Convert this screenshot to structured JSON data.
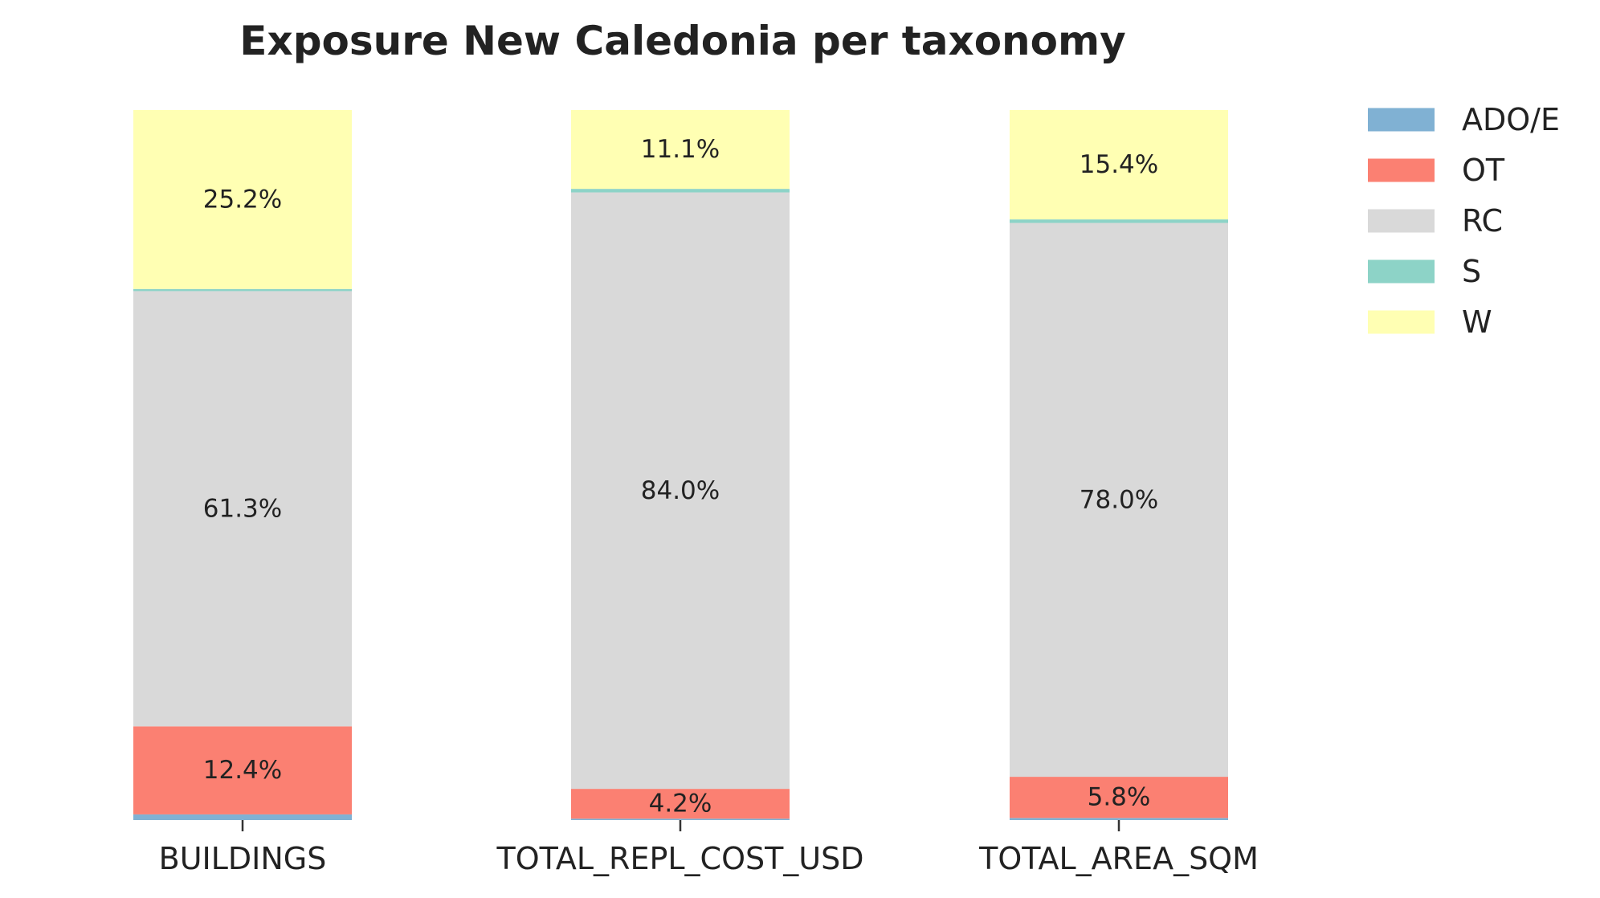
{
  "chart_data": {
    "type": "bar",
    "stacked": true,
    "title": "Exposure New Caledonia per taxonomy",
    "xlabel": "",
    "ylabel": "",
    "ylim": [
      0,
      100
    ],
    "grid": false,
    "legend_position": "right",
    "categories": [
      "BUILDINGS",
      "TOTAL_REPL_COST_USD",
      "TOTAL_AREA_SQM"
    ],
    "series": [
      {
        "name": "ADO/E",
        "color": "#80b1d3",
        "values": [
          0.8,
          0.2,
          0.3
        ],
        "labels": [
          "",
          "",
          ""
        ]
      },
      {
        "name": "OT",
        "color": "#fb8072",
        "values": [
          12.4,
          4.2,
          5.8
        ],
        "labels": [
          "12.4%",
          "4.2%",
          "5.8%"
        ]
      },
      {
        "name": "RC",
        "color": "#d9d9d9",
        "values": [
          61.3,
          84.0,
          78.0
        ],
        "labels": [
          "61.3%",
          "84.0%",
          "78.0%"
        ]
      },
      {
        "name": "S",
        "color": "#8dd3c7",
        "values": [
          0.3,
          0.5,
          0.5
        ],
        "labels": [
          "",
          "",
          ""
        ]
      },
      {
        "name": "W",
        "color": "#ffffb3",
        "values": [
          25.2,
          11.1,
          15.4
        ],
        "labels": [
          "25.2%",
          "11.1%",
          "15.4%"
        ]
      }
    ]
  }
}
